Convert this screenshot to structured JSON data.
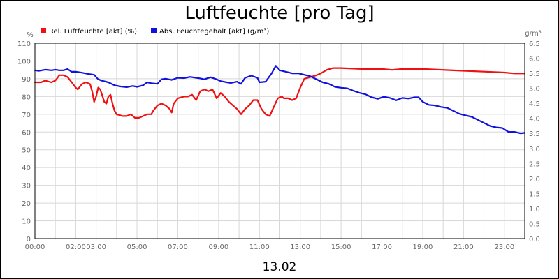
{
  "chart_data": {
    "type": "line",
    "title": "Luftfeuchte [pro Tag]",
    "date_label": "13.02",
    "y_left_unit": "%",
    "y_right_unit": "g/m³",
    "ylim_left": [
      0,
      110
    ],
    "ylim_right": [
      0,
      6.5
    ],
    "y_left_ticks": [
      0,
      10,
      20,
      30,
      40,
      50,
      60,
      70,
      80,
      90,
      100,
      110
    ],
    "y_right_ticks": [
      "0.0",
      "0.5",
      "1.0",
      "1.5",
      "2.0",
      "2.5",
      "3.0",
      "3.5",
      "4.0",
      "4.5",
      "5.0",
      "5.5",
      "6.0",
      "6.5"
    ],
    "x_range_hours": [
      0,
      24
    ],
    "x_ticks": [
      {
        "h": 0,
        "label": "00:00"
      },
      {
        "h": 2,
        "label": "02:00"
      },
      {
        "h": 3,
        "label": "03:00"
      },
      {
        "h": 5,
        "label": "05:00"
      },
      {
        "h": 7,
        "label": "07:00"
      },
      {
        "h": 9,
        "label": "09:00"
      },
      {
        "h": 11,
        "label": "11:00"
      },
      {
        "h": 13,
        "label": "13:00"
      },
      {
        "h": 15,
        "label": "15:00"
      },
      {
        "h": 17,
        "label": "17:00"
      },
      {
        "h": 19,
        "label": "19:00"
      },
      {
        "h": 21,
        "label": "21:00"
      },
      {
        "h": 23,
        "label": "23:00"
      }
    ],
    "grid": true,
    "legend_position": "top-left",
    "series": [
      {
        "name": "Rel. Luftfeuchte [akt] (%)",
        "axis": "left",
        "color": "#ee1111",
        "points": [
          [
            0.0,
            88
          ],
          [
            0.3,
            88
          ],
          [
            0.5,
            89
          ],
          [
            0.8,
            88
          ],
          [
            1.0,
            89
          ],
          [
            1.2,
            92
          ],
          [
            1.4,
            92
          ],
          [
            1.6,
            91
          ],
          [
            1.8,
            88
          ],
          [
            2.0,
            85
          ],
          [
            2.1,
            84
          ],
          [
            2.3,
            87
          ],
          [
            2.5,
            88
          ],
          [
            2.7,
            87
          ],
          [
            2.8,
            83
          ],
          [
            2.9,
            77
          ],
          [
            3.0,
            80
          ],
          [
            3.1,
            85
          ],
          [
            3.2,
            84
          ],
          [
            3.4,
            77
          ],
          [
            3.5,
            76
          ],
          [
            3.6,
            80
          ],
          [
            3.7,
            81
          ],
          [
            3.8,
            76
          ],
          [
            3.9,
            72
          ],
          [
            4.0,
            70
          ],
          [
            4.3,
            69
          ],
          [
            4.5,
            69
          ],
          [
            4.7,
            70
          ],
          [
            4.9,
            68
          ],
          [
            5.1,
            68
          ],
          [
            5.3,
            69
          ],
          [
            5.5,
            70
          ],
          [
            5.7,
            70
          ],
          [
            5.8,
            72
          ],
          [
            6.0,
            75
          ],
          [
            6.2,
            76
          ],
          [
            6.4,
            75
          ],
          [
            6.6,
            73
          ],
          [
            6.7,
            71
          ],
          [
            6.8,
            76
          ],
          [
            7.0,
            79
          ],
          [
            7.3,
            80
          ],
          [
            7.5,
            80
          ],
          [
            7.7,
            81
          ],
          [
            7.9,
            78
          ],
          [
            8.1,
            83
          ],
          [
            8.3,
            84
          ],
          [
            8.5,
            83
          ],
          [
            8.7,
            84
          ],
          [
            8.9,
            79
          ],
          [
            9.1,
            82
          ],
          [
            9.3,
            80
          ],
          [
            9.5,
            77
          ],
          [
            9.7,
            75
          ],
          [
            9.9,
            73
          ],
          [
            10.1,
            70
          ],
          [
            10.3,
            73
          ],
          [
            10.5,
            75
          ],
          [
            10.7,
            78
          ],
          [
            10.9,
            78
          ],
          [
            11.1,
            73
          ],
          [
            11.3,
            70
          ],
          [
            11.5,
            69
          ],
          [
            11.7,
            74
          ],
          [
            11.9,
            79
          ],
          [
            12.1,
            80
          ],
          [
            12.2,
            79
          ],
          [
            12.4,
            79
          ],
          [
            12.6,
            78
          ],
          [
            12.8,
            79
          ],
          [
            13.0,
            85
          ],
          [
            13.2,
            90
          ],
          [
            13.5,
            91
          ],
          [
            13.8,
            92
          ],
          [
            14.0,
            93
          ],
          [
            14.3,
            95
          ],
          [
            14.6,
            96
          ],
          [
            15.0,
            96
          ],
          [
            16.0,
            95.5
          ],
          [
            17.0,
            95.5
          ],
          [
            17.5,
            95
          ],
          [
            18.0,
            95.5
          ],
          [
            19.0,
            95.5
          ],
          [
            20.0,
            95
          ],
          [
            21.0,
            94.5
          ],
          [
            22.0,
            94
          ],
          [
            23.0,
            93.5
          ],
          [
            23.5,
            93
          ],
          [
            24.0,
            93
          ]
        ]
      },
      {
        "name": "Abs. Feuchtegehalt [akt] (g/m³)",
        "axis": "right",
        "color": "#1111dd",
        "points": [
          [
            0.0,
            5.6
          ],
          [
            0.2,
            5.58
          ],
          [
            0.5,
            5.62
          ],
          [
            0.8,
            5.6
          ],
          [
            1.0,
            5.62
          ],
          [
            1.2,
            5.6
          ],
          [
            1.4,
            5.6
          ],
          [
            1.6,
            5.64
          ],
          [
            1.8,
            5.55
          ],
          [
            2.0,
            5.55
          ],
          [
            2.3,
            5.52
          ],
          [
            2.6,
            5.48
          ],
          [
            2.9,
            5.45
          ],
          [
            3.1,
            5.3
          ],
          [
            3.3,
            5.25
          ],
          [
            3.6,
            5.2
          ],
          [
            3.9,
            5.1
          ],
          [
            4.2,
            5.06
          ],
          [
            4.5,
            5.04
          ],
          [
            4.8,
            5.08
          ],
          [
            5.0,
            5.05
          ],
          [
            5.3,
            5.1
          ],
          [
            5.5,
            5.2
          ],
          [
            5.7,
            5.17
          ],
          [
            6.0,
            5.15
          ],
          [
            6.2,
            5.3
          ],
          [
            6.4,
            5.32
          ],
          [
            6.7,
            5.28
          ],
          [
            7.0,
            5.35
          ],
          [
            7.3,
            5.34
          ],
          [
            7.6,
            5.38
          ],
          [
            7.9,
            5.35
          ],
          [
            8.1,
            5.33
          ],
          [
            8.3,
            5.3
          ],
          [
            8.6,
            5.37
          ],
          [
            8.9,
            5.3
          ],
          [
            9.1,
            5.24
          ],
          [
            9.4,
            5.2
          ],
          [
            9.6,
            5.18
          ],
          [
            9.9,
            5.22
          ],
          [
            10.1,
            5.15
          ],
          [
            10.3,
            5.35
          ],
          [
            10.6,
            5.42
          ],
          [
            10.9,
            5.35
          ],
          [
            11.0,
            5.2
          ],
          [
            11.3,
            5.22
          ],
          [
            11.6,
            5.5
          ],
          [
            11.8,
            5.75
          ],
          [
            12.0,
            5.6
          ],
          [
            12.3,
            5.55
          ],
          [
            12.6,
            5.5
          ],
          [
            12.9,
            5.5
          ],
          [
            13.2,
            5.45
          ],
          [
            13.5,
            5.4
          ],
          [
            13.8,
            5.3
          ],
          [
            14.1,
            5.2
          ],
          [
            14.4,
            5.15
          ],
          [
            14.7,
            5.05
          ],
          [
            15.0,
            5.02
          ],
          [
            15.3,
            5.0
          ],
          [
            15.6,
            4.92
          ],
          [
            15.9,
            4.85
          ],
          [
            16.2,
            4.8
          ],
          [
            16.5,
            4.7
          ],
          [
            16.8,
            4.65
          ],
          [
            17.1,
            4.72
          ],
          [
            17.4,
            4.68
          ],
          [
            17.7,
            4.6
          ],
          [
            18.0,
            4.68
          ],
          [
            18.3,
            4.66
          ],
          [
            18.6,
            4.7
          ],
          [
            18.8,
            4.7
          ],
          [
            19.0,
            4.55
          ],
          [
            19.3,
            4.45
          ],
          [
            19.6,
            4.43
          ],
          [
            19.9,
            4.38
          ],
          [
            20.2,
            4.35
          ],
          [
            20.5,
            4.25
          ],
          [
            20.8,
            4.15
          ],
          [
            21.1,
            4.1
          ],
          [
            21.4,
            4.05
          ],
          [
            21.7,
            3.95
          ],
          [
            22.0,
            3.85
          ],
          [
            22.3,
            3.75
          ],
          [
            22.6,
            3.7
          ],
          [
            22.9,
            3.68
          ],
          [
            23.2,
            3.55
          ],
          [
            23.5,
            3.55
          ],
          [
            23.8,
            3.5
          ],
          [
            24.0,
            3.52
          ]
        ]
      }
    ]
  }
}
